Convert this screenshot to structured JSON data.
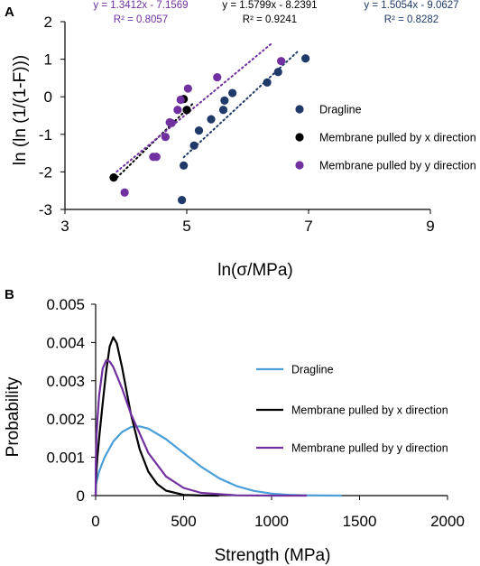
{
  "chart_data": [
    {
      "panel": "A",
      "type": "scatter",
      "xlabel": "ln(σ/MPa)",
      "ylabel": "ln (ln (1/(1-F)))",
      "xlim": [
        3,
        9
      ],
      "ylim": [
        -3,
        2
      ],
      "x_ticks": [
        "3",
        "5",
        "7",
        "9"
      ],
      "y_ticks": [
        "2",
        "1",
        "0",
        "-1",
        "-2",
        "-3"
      ],
      "grid": false,
      "legend_placement": "right",
      "series": [
        {
          "name": "Dragline",
          "color": "#1f3a68",
          "points": [
            [
              4.92,
              -2.75
            ],
            [
              4.95,
              -1.83
            ],
            [
              5.12,
              -1.3
            ],
            [
              5.2,
              -0.9
            ],
            [
              5.4,
              -0.6
            ],
            [
              5.6,
              -0.35
            ],
            [
              5.62,
              -0.1
            ],
            [
              5.75,
              0.1
            ],
            [
              6.32,
              0.38
            ],
            [
              6.5,
              0.66
            ],
            [
              6.95,
              1.02
            ]
          ],
          "fit": {
            "equation": "y = 1.5054x - 9.0627",
            "r2": "R² = 0.8282",
            "color": "#1f3a68",
            "x_range": [
              4.95,
              6.85
            ]
          }
        },
        {
          "name": "Membrane pulled by x direction",
          "color": "#000000",
          "points": [
            [
              3.8,
              -2.15
            ],
            [
              4.95,
              -0.06
            ],
            [
              5.0,
              -0.35
            ]
          ],
          "fit": {
            "equation": "y = 1.5799x - 8.2391",
            "r2": "R² = 0.9241",
            "color": "#000000",
            "x_range": [
              3.8,
              5.1
            ]
          }
        },
        {
          "name": "Membrane pulled by y direction",
          "color": "#7030a0",
          "points": [
            [
              3.98,
              -2.55
            ],
            [
              4.45,
              -1.6
            ],
            [
              4.5,
              -1.6
            ],
            [
              4.65,
              -1.07
            ],
            [
              4.72,
              -0.68
            ],
            [
              4.75,
              -0.7
            ],
            [
              4.85,
              -0.35
            ],
            [
              4.9,
              -0.08
            ],
            [
              5.02,
              0.22
            ],
            [
              5.5,
              0.52
            ],
            [
              6.55,
              0.95
            ]
          ],
          "fit": {
            "equation": "y = 1.3412x - 7.1569",
            "r2": "R² = 0.8057",
            "color": "#7030a0",
            "x_range": [
              3.85,
              6.4
            ]
          }
        }
      ]
    },
    {
      "panel": "B",
      "type": "line",
      "xlabel": "Strength (MPa)",
      "ylabel": "Probability",
      "xlim": [
        0,
        2000
      ],
      "ylim": [
        0,
        0.005
      ],
      "x_ticks": [
        "0",
        "500",
        "1000",
        "1500",
        "2000"
      ],
      "y_ticks": [
        "0.005",
        "0.004",
        "0.003",
        "0.002",
        "0.001",
        "0"
      ],
      "grid": false,
      "legend_placement": "right",
      "series": [
        {
          "name": "Dragline",
          "color": "#4a9fd8",
          "x": [
            0,
            1,
            5,
            20,
            50,
            100,
            150,
            200,
            250,
            300,
            400,
            500,
            600,
            700,
            800,
            900,
            1000,
            1100,
            1200,
            1300,
            1400
          ],
          "y": [
            0,
            0.000265,
            0.000368,
            0.000633,
            0.000993,
            0.001413,
            0.001663,
            0.001788,
            0.00181,
            0.00175,
            0.001475,
            0.00111,
            0.000752,
            0.000458,
            0.00025,
            0.000122,
            5.25e-05,
            1.98e-05,
            6.6e-06,
            1.9e-06,
            5e-07
          ]
        },
        {
          "name": "Membrane pulled by x direction",
          "color": "#000000",
          "x": [
            0,
            1,
            5,
            10,
            20,
            40,
            60,
            80,
            100,
            120,
            150,
            200,
            250,
            300,
            350,
            400,
            500,
            600,
            700
          ],
          "y": [
            0,
            0.00027,
            0.00069,
            0.00102,
            0.00151,
            0.00241,
            0.00325,
            0.0039,
            0.00414,
            0.00398,
            0.00335,
            0.00214,
            0.00121,
            0.00062,
            0.0003,
            0.00013,
            2e-05,
            2e-06,
            0
          ],
          "note": "fit from y = 1.5799x - 8.2391"
        },
        {
          "name": "Membrane pulled by y direction",
          "color": "#7030a0",
          "x": [
            0,
            1,
            5,
            10,
            20,
            40,
            60,
            80,
            100,
            150,
            200,
            300,
            400,
            500,
            600,
            800,
            1000,
            1200
          ],
          "y": [
            0,
            0.0008,
            0.00157,
            0.002,
            0.00262,
            0.00332,
            0.00353,
            0.0035,
            0.00336,
            0.0028,
            0.00214,
            0.00111,
            0.0005,
            0.0002,
            7e-05,
            7e-06,
            4e-07,
            0
          ]
        }
      ]
    }
  ]
}
